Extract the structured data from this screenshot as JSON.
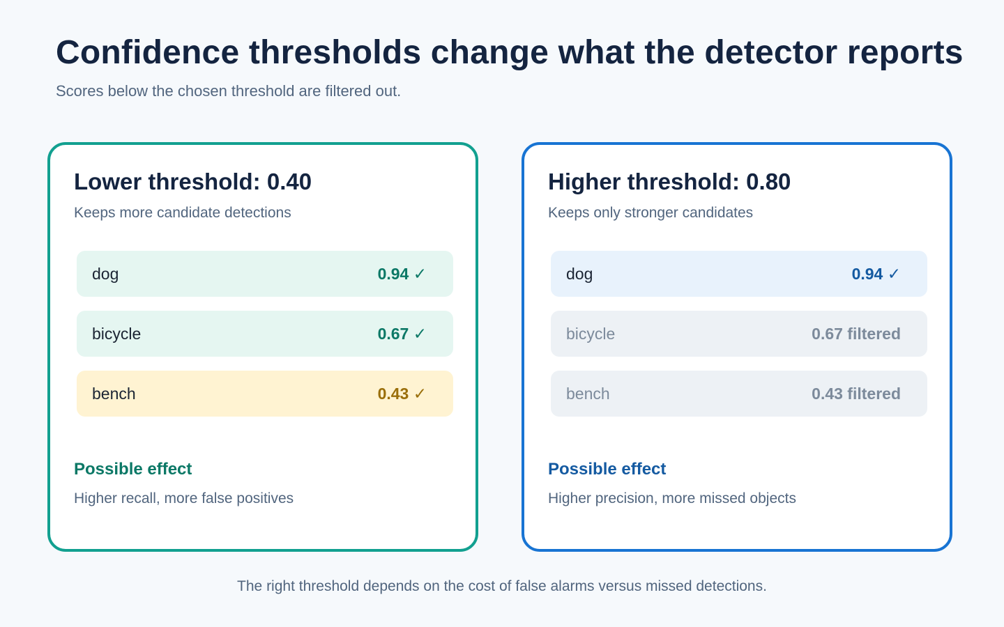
{
  "title": "Confidence thresholds change what the detector reports",
  "subtitle": "Scores below the chosen threshold are filtered out.",
  "panels": [
    {
      "title": "Lower threshold: 0.40",
      "description": "Keeps more candidate detections",
      "accent": "#12a090",
      "detections": [
        {
          "label": "dog",
          "score_text": "0.94 ✓",
          "status": "kept"
        },
        {
          "label": "bicycle",
          "score_text": "0.67 ✓",
          "status": "kept"
        },
        {
          "label": "bench",
          "score_text": "0.43 ✓",
          "status": "kept-borderline"
        }
      ],
      "effect_title": "Possible effect",
      "effect_text": "Higher recall, more false positives"
    },
    {
      "title": "Higher threshold: 0.80",
      "description": "Keeps only stronger candidates",
      "accent": "#1874d3",
      "detections": [
        {
          "label": "dog",
          "score_text": "0.94 ✓",
          "status": "kept"
        },
        {
          "label": "bicycle",
          "score_text": "0.67 filtered",
          "status": "filtered"
        },
        {
          "label": "bench",
          "score_text": "0.43 filtered",
          "status": "filtered"
        }
      ],
      "effect_title": "Possible effect",
      "effect_text": "Higher precision, more missed objects"
    }
  ],
  "footer": "The right threshold depends on the cost of false alarms versus missed detections."
}
